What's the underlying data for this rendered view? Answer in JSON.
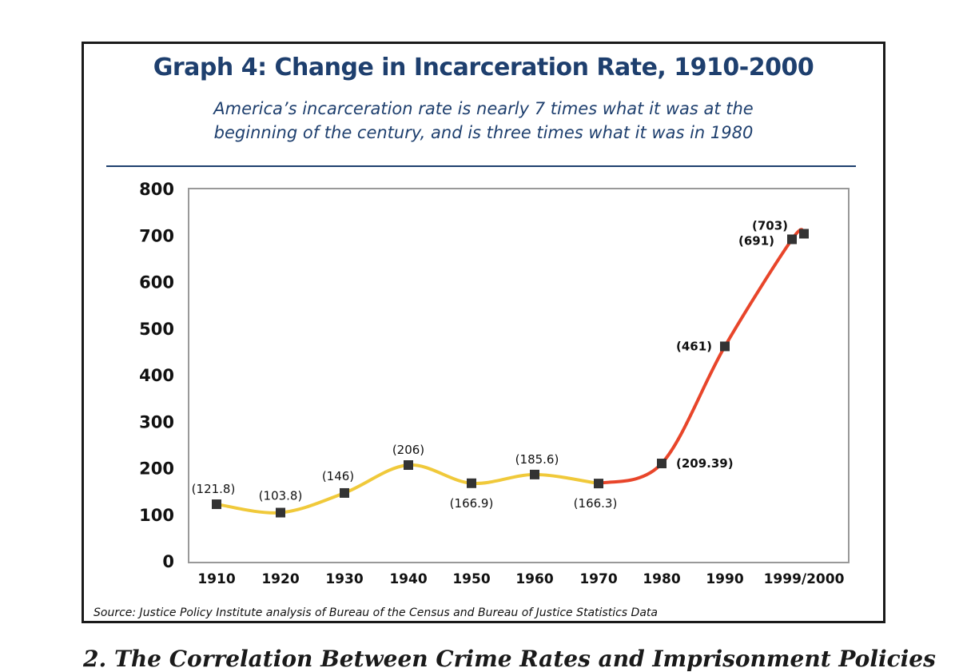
{
  "chart_data": {
    "type": "line",
    "title": "Graph 4:  Change in Incarceration Rate, 1910-2000",
    "subtitle_lines": [
      "America’s incarceration rate is nearly 7 times what it was at the",
      "beginning of the century, and is three times what it was in 1980"
    ],
    "source": "Source:  Justice Policy Institute analysis of Bureau of the Census and Bureau of Justice Statistics Data",
    "xlabel": "",
    "ylabel": "",
    "ylim": [
      0,
      800
    ],
    "yticks": [
      "0",
      "100",
      "200",
      "300",
      "400",
      "500",
      "600",
      "700",
      "800"
    ],
    "categories": [
      "1910",
      "1920",
      "1930",
      "1940",
      "1950",
      "1960",
      "1970",
      "1980",
      "1990",
      "1999/2000"
    ],
    "grid": false,
    "series_colors": {
      "early": "#f0c93a",
      "late": "#e8452a"
    },
    "marker_color": "#333333",
    "points": [
      {
        "x": 1910,
        "y": 121.8,
        "label": "(121.8)",
        "bold": false
      },
      {
        "x": 1920,
        "y": 103.8,
        "label": "(103.8)",
        "bold": false
      },
      {
        "x": 1930,
        "y": 146,
        "label": "(146)",
        "bold": false
      },
      {
        "x": 1940,
        "y": 206,
        "label": "(206)",
        "bold": false
      },
      {
        "x": 1950,
        "y": 166.9,
        "label": "(166.9)",
        "bold": false
      },
      {
        "x": 1960,
        "y": 185.6,
        "label": "(185.6)",
        "bold": false
      },
      {
        "x": 1970,
        "y": 166.3,
        "label": "(166.3)",
        "bold": false
      },
      {
        "x": 1980,
        "y": 209.39,
        "label": "(209.39)",
        "bold": true
      },
      {
        "x": 1990,
        "y": 461,
        "label": "(461)",
        "bold": true
      },
      {
        "x": 1999,
        "y": 691,
        "label": "(691)",
        "bold": true
      },
      {
        "x": 2000,
        "y": 703,
        "label": "(703)",
        "bold": true
      }
    ]
  },
  "footer_heading": "2.  The Correlation Between Crime Rates and Imprisonment Policies"
}
